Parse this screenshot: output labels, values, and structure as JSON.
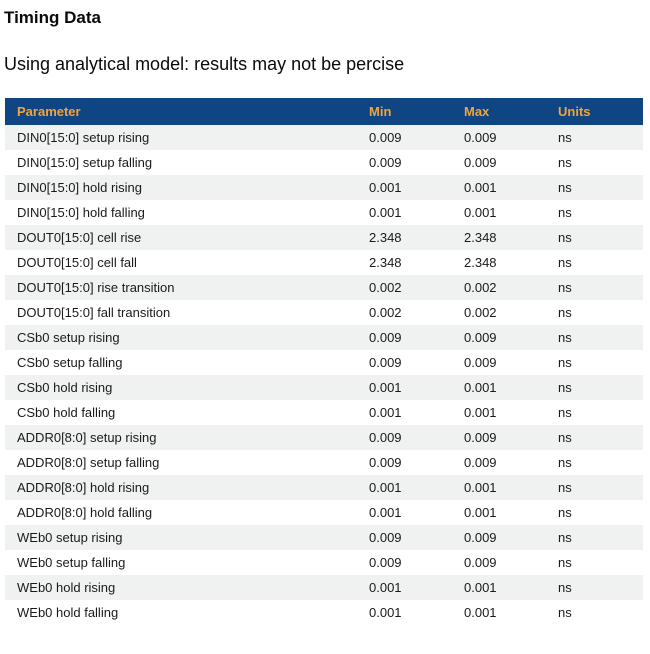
{
  "page": {
    "title": "Timing Data",
    "subtitle": "Using analytical model: results may not be percise"
  },
  "table": {
    "columns": [
      "Parameter",
      "Min",
      "Max",
      "Units"
    ],
    "rows": [
      [
        "DIN0[15:0] setup rising",
        "0.009",
        "0.009",
        "ns"
      ],
      [
        "DIN0[15:0] setup falling",
        "0.009",
        "0.009",
        "ns"
      ],
      [
        "DIN0[15:0] hold rising",
        "0.001",
        "0.001",
        "ns"
      ],
      [
        "DIN0[15:0] hold falling",
        "0.001",
        "0.001",
        "ns"
      ],
      [
        "DOUT0[15:0] cell rise",
        "2.348",
        "2.348",
        "ns"
      ],
      [
        "DOUT0[15:0] cell fall",
        "2.348",
        "2.348",
        "ns"
      ],
      [
        "DOUT0[15:0] rise transition",
        "0.002",
        "0.002",
        "ns"
      ],
      [
        "DOUT0[15:0] fall transition",
        "0.002",
        "0.002",
        "ns"
      ],
      [
        "CSb0 setup rising",
        "0.009",
        "0.009",
        "ns"
      ],
      [
        "CSb0 setup falling",
        "0.009",
        "0.009",
        "ns"
      ],
      [
        "CSb0 hold rising",
        "0.001",
        "0.001",
        "ns"
      ],
      [
        "CSb0 hold falling",
        "0.001",
        "0.001",
        "ns"
      ],
      [
        "ADDR0[8:0] setup rising",
        "0.009",
        "0.009",
        "ns"
      ],
      [
        "ADDR0[8:0] setup falling",
        "0.009",
        "0.009",
        "ns"
      ],
      [
        "ADDR0[8:0] hold rising",
        "0.001",
        "0.001",
        "ns"
      ],
      [
        "ADDR0[8:0] hold falling",
        "0.001",
        "0.001",
        "ns"
      ],
      [
        "WEb0 setup rising",
        "0.009",
        "0.009",
        "ns"
      ],
      [
        "WEb0 setup falling",
        "0.009",
        "0.009",
        "ns"
      ],
      [
        "WEb0 hold rising",
        "0.001",
        "0.001",
        "ns"
      ],
      [
        "WEb0 hold falling",
        "0.001",
        "0.001",
        "ns"
      ]
    ]
  },
  "colors": {
    "header_bg": "#0F4583",
    "header_text": "#F2A43C",
    "row_alt_bg": "#F0F1F1",
    "row_bg": "#FFFFFF",
    "body_text": "#1A1A1A",
    "title_text": "#0A0A0A"
  }
}
